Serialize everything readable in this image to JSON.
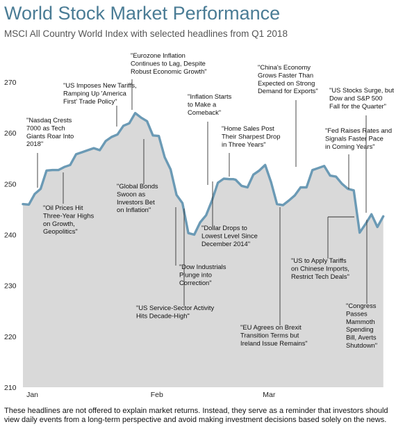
{
  "title": "World Stock Market Performance",
  "subtitle": "MSCI All Country World Index with selected headlines from Q1 2018",
  "footnote": "These headlines are not offered to explain market returns. Instead, they serve as a reminder that investors should view daily events from a long-term perspective and avoid making investment decisions based solely on the news.",
  "colors": {
    "line": "#6b9ab5",
    "area": "#d9d9d9",
    "title": "#4a7c95"
  },
  "chart_data": {
    "type": "area",
    "title": "World Stock Market Performance",
    "ylim": [
      210,
      270
    ],
    "yticks": [
      210,
      220,
      230,
      240,
      250,
      260,
      270
    ],
    "xticks": [
      {
        "label": "Jan",
        "i": 0.6
      },
      {
        "label": "Feb",
        "i": 21.6
      },
      {
        "label": "Mar",
        "i": 40.6
      }
    ],
    "grid": false,
    "x": [
      0,
      1,
      2,
      3,
      4,
      5,
      6,
      7,
      8,
      9,
      10,
      11,
      12,
      13,
      14,
      15,
      16,
      17,
      18,
      19,
      20,
      21,
      22,
      23,
      24,
      25,
      26,
      27,
      28,
      29,
      30,
      31,
      32,
      33,
      34,
      35,
      35.6,
      36,
      37,
      38,
      39,
      40,
      41,
      42,
      43,
      44,
      45,
      46,
      47,
      48,
      49,
      50,
      51,
      52,
      53,
      54,
      55,
      56,
      57,
      58,
      59,
      60,
      61
    ],
    "series": [
      {
        "name": "MSCI All Country World Index",
        "values": [
          246.0,
          245.9,
          248.0,
          249.0,
          252.6,
          252.7,
          252.7,
          253.3,
          253.7,
          255.8,
          256.2,
          256.6,
          257.0,
          256.6,
          258.4,
          259.2,
          259.7,
          261.4,
          261.9,
          263.9,
          263.0,
          262.3,
          259.5,
          259.4,
          255.2,
          252.8,
          247.8,
          246.2,
          240.3,
          240.0,
          242.4,
          243.8,
          246.7,
          250.2,
          251.0,
          250.9,
          250.9,
          250.8,
          249.6,
          249.3,
          251.8,
          252.6,
          253.7,
          250.3,
          246.0,
          245.8,
          246.7,
          247.7,
          249.3,
          249.3,
          252.7,
          253.1,
          253.5,
          251.6,
          251.4,
          250.0,
          249.0,
          248.7,
          240.4,
          242.1,
          244.0,
          241.5,
          243.6
        ]
      }
    ],
    "annotations": [
      {
        "lines": [
          "Nasdaq Crests",
          "7000 as Tech",
          "Giants Roar Into",
          "2018\""
        ],
        "first_prefix": "\""
      },
      {
        "lines": [
          "Oil Prices Hit",
          "Three-Year Highs",
          "on Growth,",
          "Geopolitics\""
        ],
        "first_prefix": "\""
      },
      {
        "lines": [
          "US Imposes New Tariffs,",
          "Ramping Up 'America",
          "First' Trade Policy\""
        ],
        "first_prefix": "\""
      },
      {
        "lines": [
          "Eurozone Inflation",
          "Continues to Lag, Despite",
          "Robust Economic Growth\""
        ],
        "first_prefix": "\""
      },
      {
        "lines": [
          "Global Bonds",
          "Swoon as",
          "Investors Bet",
          "on Inflation\""
        ],
        "first_prefix": "\""
      },
      {
        "lines": [
          "Dow Industrials",
          "Plunge into",
          "Correction\""
        ],
        "first_prefix": "\""
      },
      {
        "lines": [
          "US Service-Sector Activity",
          "Hits Decade-High\""
        ],
        "first_prefix": "\""
      },
      {
        "lines": [
          "Inflation Starts",
          "to Make a",
          "Comeback\""
        ],
        "first_prefix": "\""
      },
      {
        "lines": [
          "Dollar Drops to",
          "Lowest Level Since",
          "December 2014\""
        ],
        "first_prefix": "\""
      },
      {
        "lines": [
          "Home Sales Post",
          "Their Sharpest Drop",
          "in Three Years\""
        ],
        "first_prefix": "\""
      },
      {
        "lines": [
          "EU Agrees on Brexit",
          "Transition Terms but",
          "Ireland Issue Remains\""
        ],
        "first_prefix": "\""
      },
      {
        "lines": [
          "China's Economy",
          "Grows Faster Than",
          "Expected on Strong",
          "Demand for Exports\""
        ],
        "first_prefix": "\""
      },
      {
        "lines": [
          "Fed Raises Rates and",
          "Signals Faster Pace",
          "in Coming Years\""
        ],
        "first_prefix": "\""
      },
      {
        "lines": [
          "US to Apply Tariffs",
          "on Chinese Imports,",
          "Restrict Tech Deals\""
        ],
        "first_prefix": "\""
      },
      {
        "lines": [
          "US Stocks Surge, but",
          "Dow and S&P 500",
          "Fall for the Quarter\""
        ],
        "first_prefix": "\""
      },
      {
        "lines": [
          "Congress",
          "Passes",
          "Mammoth",
          "Spending",
          "Bill, Averts",
          "Shutdown\""
        ],
        "first_prefix": "\""
      }
    ]
  }
}
